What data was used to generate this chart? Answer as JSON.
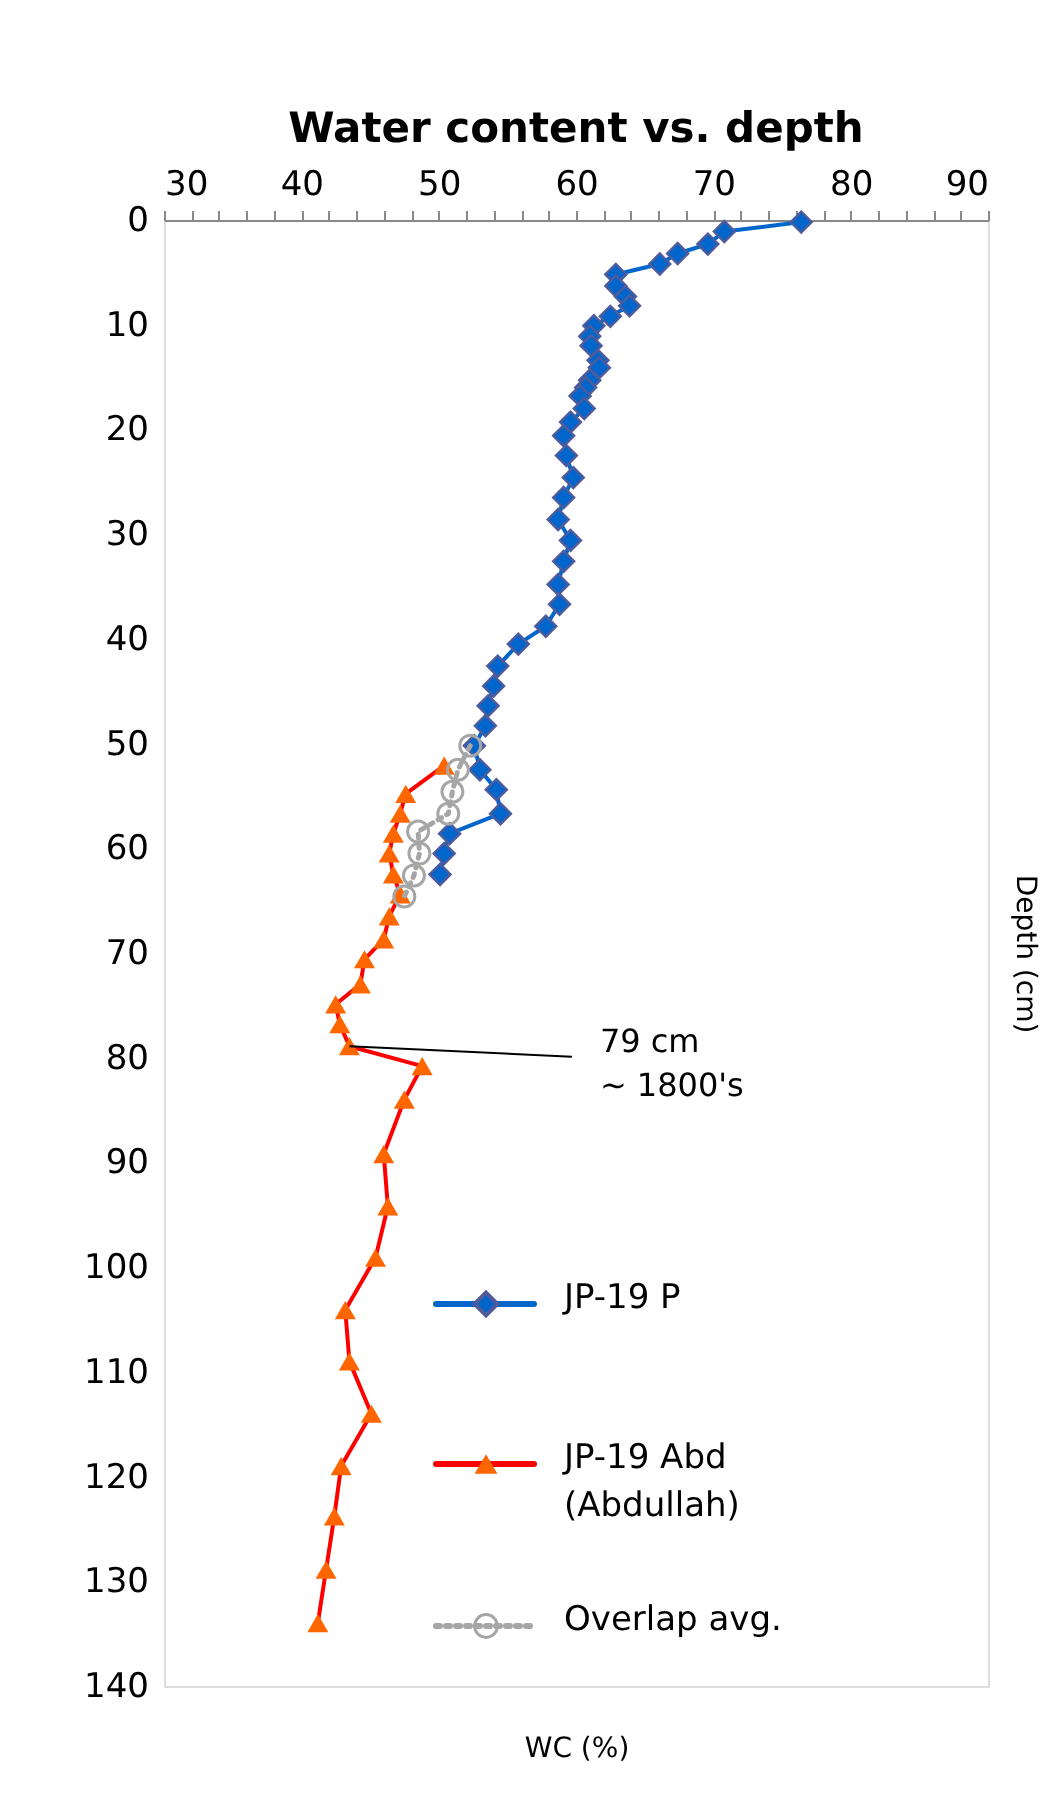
{
  "chart_data": {
    "type": "line",
    "title": "Water content vs. depth",
    "xlabel": "WC (%)",
    "ylabel": "Depth (cm)",
    "orientation": "horizontal",
    "xlim": [
      30,
      90
    ],
    "xticks": [
      30,
      {
        "value": 32,
        "label": null
      },
      {
        "value": 34,
        "label": null
      },
      {
        "value": 36,
        "label": null
      },
      {
        "value": 38,
        "label": null
      },
      40,
      {
        "value": 42,
        "label": null
      },
      {
        "value": 44,
        "label": null
      },
      {
        "value": 46,
        "label": null
      },
      {
        "value": 48,
        "label": null
      },
      50,
      {
        "value": 52,
        "label": null
      },
      {
        "value": 54,
        "label": null
      },
      {
        "value": 56,
        "label": null
      },
      {
        "value": 58,
        "label": null
      },
      60,
      {
        "value": 62,
        "label": null
      },
      {
        "value": 64,
        "label": null
      },
      {
        "value": 66,
        "label": null
      },
      {
        "value": 68,
        "label": null
      },
      70,
      {
        "value": 72,
        "label": null
      },
      {
        "value": 74,
        "label": null
      },
      {
        "value": 76,
        "label": null
      },
      {
        "value": 78,
        "label": null
      },
      80,
      {
        "value": 82,
        "label": null
      },
      {
        "value": 84,
        "label": null
      },
      {
        "value": 86,
        "label": null
      },
      {
        "value": 88,
        "label": null
      },
      90
    ],
    "ylim": [
      140,
      0
    ],
    "yticks": [
      0,
      10,
      20,
      30,
      40,
      50,
      60,
      70,
      80,
      90,
      100,
      110,
      120,
      130,
      140
    ],
    "grid": false,
    "legend": "bottom right",
    "series": [
      {
        "name": "JP-19 P",
        "color": "#0066cc",
        "marker": "diamond",
        "line_style": "solid",
        "values": [
          76.4,
          70.8,
          69.6,
          67.4,
          66.1,
          62.9,
          62.9,
          63.6,
          63.9,
          62.5,
          61.3,
          61.0,
          61.1,
          61.6,
          61.7,
          61.0,
          60.7,
          60.3,
          60.6,
          59.6,
          59.1,
          59.3,
          59.8,
          59.1,
          58.7,
          59.6,
          59.1,
          58.7,
          58.8,
          57.8,
          55.8,
          54.3,
          54.0,
          53.6,
          53.4,
          52.6,
          53.0,
          54.2,
          54.5,
          50.8,
          50.4,
          50.1
        ],
        "x": [
          0.2,
          1.1,
          2.3,
          3.2,
          4.2,
          5.2,
          6.3,
          7.3,
          8.2,
          9.2,
          10.1,
          11.1,
          12.0,
          13.4,
          14.1,
          15.3,
          16.0,
          16.8,
          18.0,
          19.3,
          20.6,
          22.5,
          24.6,
          26.5,
          28.6,
          30.6,
          32.6,
          34.8,
          36.7,
          38.8,
          40.5,
          42.6,
          44.5,
          46.4,
          48.3,
          50.2,
          52.5,
          54.4,
          56.7,
          58.6,
          60.5,
          62.5
        ]
      },
      {
        "name": "JP-19 Abd\n(Abdullah)",
        "color": "#ff0000",
        "colors": [
          "#ff6600",
          "#ff6600",
          "#ff6600",
          "#ff6600",
          "#ff6600",
          "#ff6600",
          "#ff6600",
          "#ff6600",
          "#ff6600",
          "#ff6600",
          "#ff6600",
          "#ff6600",
          "#ff6600",
          "#ff6600",
          "#ff6600",
          "#ff6600",
          "#ff6600",
          "#ff6600",
          "#ff6600",
          "#ff6600",
          "#ff6600",
          "#ff6600",
          "#ff6600",
          "#ff6600",
          "#ff6600",
          "#ff6600"
        ],
        "marker": "triangle",
        "line_style": "solid",
        "values": [
          50.4,
          47.6,
          47.2,
          46.7,
          46.4,
          46.7,
          47.2,
          46.4,
          46.0,
          44.6,
          44.3,
          42.5,
          42.8,
          43.5,
          48.8,
          47.5,
          46.0,
          46.3,
          45.4,
          43.2,
          43.5,
          45.1,
          42.9,
          42.4,
          41.8,
          41.2
        ],
        "x": [
          52.1,
          54.8,
          56.7,
          58.6,
          60.5,
          62.5,
          64.4,
          66.5,
          68.7,
          70.6,
          73.0,
          74.9,
          76.8,
          78.9,
          80.8,
          84.0,
          89.2,
          94.2,
          99.1,
          104.1,
          109.0,
          114.0,
          119.0,
          123.8,
          128.9,
          134.0
        ]
      },
      {
        "name": "Overlap avg.",
        "color": "#a6a6a6",
        "marker": "circle",
        "line_style": "dotted",
        "values": [
          52.3,
          51.4,
          51.0,
          50.7,
          48.5,
          48.6,
          48.2,
          47.5
        ],
        "x": [
          50.2,
          52.5,
          54.6,
          56.7,
          58.4,
          60.5,
          62.6,
          64.6
        ]
      }
    ],
    "annotations": [
      {
        "text": "79 cm\n~ 1800's",
        "x": 43.5,
        "y": 78.9
      }
    ]
  }
}
